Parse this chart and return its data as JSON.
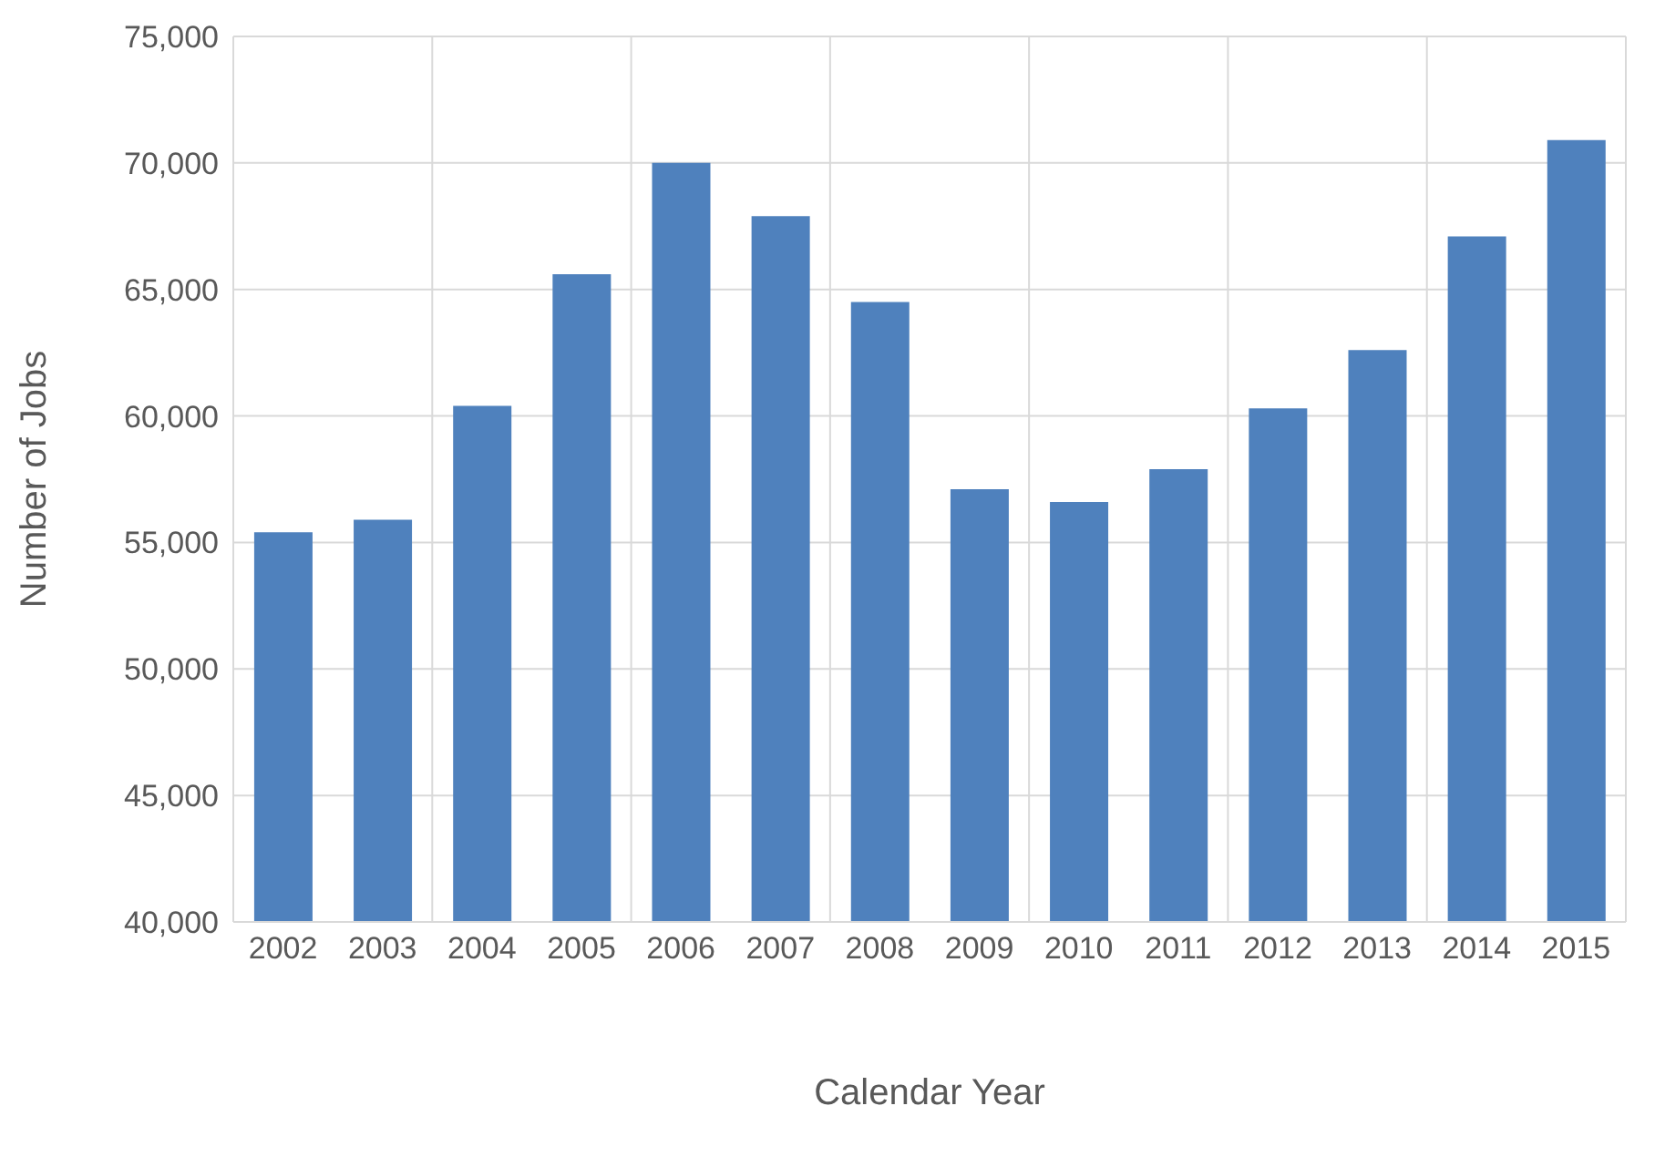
{
  "chart_data": {
    "type": "bar",
    "xlabel": "Calendar Year",
    "ylabel": "Number of Jobs",
    "categories": [
      "2002",
      "2003",
      "2004",
      "2005",
      "2006",
      "2007",
      "2008",
      "2009",
      "2010",
      "2011",
      "2012",
      "2013",
      "2014",
      "2015"
    ],
    "values": [
      55400,
      55900,
      60400,
      65600,
      70000,
      67900,
      64500,
      57100,
      56600,
      57900,
      60300,
      62600,
      67100,
      70900
    ],
    "color": "#4f81bd",
    "ylim": [
      40000,
      75000
    ],
    "yticks": [
      {
        "value": 40000,
        "label": "40,000"
      },
      {
        "value": 45000,
        "label": "45,000"
      },
      {
        "value": 50000,
        "label": "50,000"
      },
      {
        "value": 55000,
        "label": "55,000"
      },
      {
        "value": 60000,
        "label": "60,000"
      },
      {
        "value": 65000,
        "label": "65,000"
      },
      {
        "value": 70000,
        "label": "70,000"
      },
      {
        "value": 75000,
        "label": "75,000"
      }
    ],
    "grid": true
  }
}
